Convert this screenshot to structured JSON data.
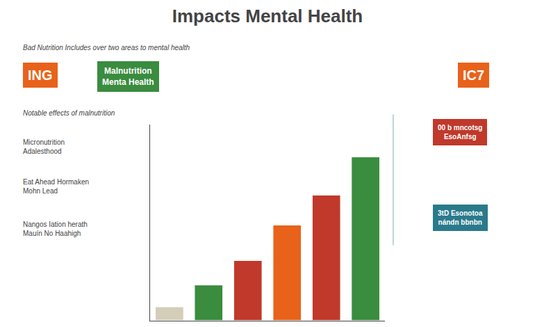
{
  "chart_data": {
    "type": "bar",
    "title": "Impacts Mental Health",
    "subtitle": "Bad Nutrition Includes over two areas to mental health",
    "categories": [
      null,
      null,
      null,
      null,
      null,
      null
    ],
    "values": [
      0.5,
      1.3,
      2.2,
      3.5,
      4.6,
      6.0
    ],
    "colors": [
      "#D4CDB8",
      "#3A8C3F",
      "#C0392B",
      "#E8621A",
      "#C0392B",
      "#3A8C3F"
    ],
    "ylim": [
      0,
      7.2
    ],
    "yticks": [],
    "grid": false,
    "tick_labels": false,
    "annotations": [
      {
        "text": "ING",
        "color": "#E8621A"
      },
      {
        "text": "Malnutrition\nMenta Health",
        "color": "#3A8C3F"
      },
      {
        "text": "IC7",
        "color": "#E8621A"
      },
      {
        "text": "Notable effects of malnutrition"
      },
      {
        "text": "Micronutrition\nAdalesthood"
      },
      {
        "text": "Eat Ahead Hormaken\nMohn Lead"
      },
      {
        "text": "Nangos Iation herath\nMauín No Haahigh"
      },
      {
        "text": "00 b mncotsg\nEsoAnfsg",
        "color": "#C0392B"
      },
      {
        "text": "3tD Esonotoa\nnándn bbnbn",
        "color": "#2A7A8C"
      }
    ]
  }
}
